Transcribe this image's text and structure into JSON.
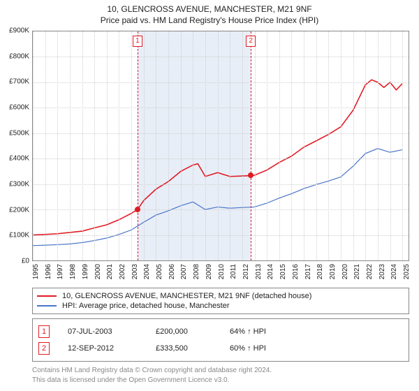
{
  "title_line1": "10, GLENCROSS AVENUE, MANCHESTER, M21 9NF",
  "title_line2": "Price paid vs. HM Land Registry's House Price Index (HPI)",
  "chart": {
    "type": "line",
    "x_years": [
      1995,
      1996,
      1997,
      1998,
      1999,
      2000,
      2001,
      2002,
      2003,
      2004,
      2005,
      2006,
      2007,
      2008,
      2009,
      2010,
      2011,
      2012,
      2013,
      2014,
      2015,
      2016,
      2017,
      2018,
      2019,
      2020,
      2021,
      2022,
      2023,
      2024,
      2025
    ],
    "xlim": [
      1995,
      2025.5
    ],
    "ylim": [
      0,
      900
    ],
    "ytick_step": 100,
    "ytick_labels": [
      "£0",
      "£100K",
      "£200K",
      "£300K",
      "£400K",
      "£500K",
      "£600K",
      "£700K",
      "£800K",
      "£900K"
    ],
    "background_color": "#ffffff",
    "grid_color": "#cfcfcf",
    "shaded_region": {
      "start": 2003.5,
      "end": 2012.7,
      "color": "#e8eef7"
    },
    "marker_dash_color": "#e01b24",
    "markers": [
      {
        "n": "1",
        "x": 2003.5,
        "y": 200
      },
      {
        "n": "2",
        "x": 2012.7,
        "y": 333.5
      }
    ],
    "series": [
      {
        "name": "10, GLENCROSS AVENUE, MANCHESTER, M21 9NF (detached house)",
        "color": "#e01b24",
        "width": 1.6,
        "data": [
          [
            1995,
            100
          ],
          [
            1996,
            102
          ],
          [
            1997,
            105
          ],
          [
            1998,
            110
          ],
          [
            1999,
            115
          ],
          [
            2000,
            128
          ],
          [
            2001,
            140
          ],
          [
            2002,
            160
          ],
          [
            2003,
            185
          ],
          [
            2003.5,
            200
          ],
          [
            2004,
            235
          ],
          [
            2005,
            280
          ],
          [
            2006,
            310
          ],
          [
            2007,
            350
          ],
          [
            2008,
            375
          ],
          [
            2008.4,
            380
          ],
          [
            2009,
            330
          ],
          [
            2010,
            345
          ],
          [
            2011,
            330
          ],
          [
            2012,
            332
          ],
          [
            2012.7,
            333.5
          ],
          [
            2013,
            335
          ],
          [
            2014,
            355
          ],
          [
            2015,
            385
          ],
          [
            2016,
            410
          ],
          [
            2017,
            445
          ],
          [
            2018,
            470
          ],
          [
            2019,
            495
          ],
          [
            2020,
            525
          ],
          [
            2021,
            590
          ],
          [
            2022,
            690
          ],
          [
            2022.5,
            710
          ],
          [
            2023,
            700
          ],
          [
            2023.5,
            680
          ],
          [
            2024,
            700
          ],
          [
            2024.5,
            670
          ],
          [
            2025,
            695
          ]
        ]
      },
      {
        "name": "HPI: Average price, detached house, Manchester",
        "color": "#4a74c9",
        "width": 1.2,
        "data": [
          [
            1995,
            58
          ],
          [
            1996,
            60
          ],
          [
            1997,
            62
          ],
          [
            1998,
            65
          ],
          [
            1999,
            70
          ],
          [
            2000,
            78
          ],
          [
            2001,
            88
          ],
          [
            2002,
            102
          ],
          [
            2003,
            120
          ],
          [
            2004,
            150
          ],
          [
            2005,
            178
          ],
          [
            2006,
            195
          ],
          [
            2007,
            215
          ],
          [
            2008,
            230
          ],
          [
            2009,
            200
          ],
          [
            2010,
            210
          ],
          [
            2011,
            205
          ],
          [
            2012,
            208
          ],
          [
            2013,
            210
          ],
          [
            2014,
            225
          ],
          [
            2015,
            245
          ],
          [
            2016,
            262
          ],
          [
            2017,
            282
          ],
          [
            2018,
            298
          ],
          [
            2019,
            312
          ],
          [
            2020,
            328
          ],
          [
            2021,
            370
          ],
          [
            2022,
            420
          ],
          [
            2023,
            440
          ],
          [
            2024,
            425
          ],
          [
            2025,
            435
          ]
        ]
      }
    ]
  },
  "legend": [
    {
      "color": "#e01b24",
      "label": "10, GLENCROSS AVENUE, MANCHESTER, M21 9NF (detached house)"
    },
    {
      "color": "#4a74c9",
      "label": "HPI: Average price, detached house, Manchester"
    }
  ],
  "transactions": [
    {
      "n": "1",
      "date": "07-JUL-2003",
      "price": "£200,000",
      "delta": "64% ↑ HPI"
    },
    {
      "n": "2",
      "date": "12-SEP-2012",
      "price": "£333,500",
      "delta": "60% ↑ HPI"
    }
  ],
  "footer_line1": "Contains HM Land Registry data © Crown copyright and database right 2024.",
  "footer_line2": "This data is licensed under the Open Government Licence v3.0."
}
